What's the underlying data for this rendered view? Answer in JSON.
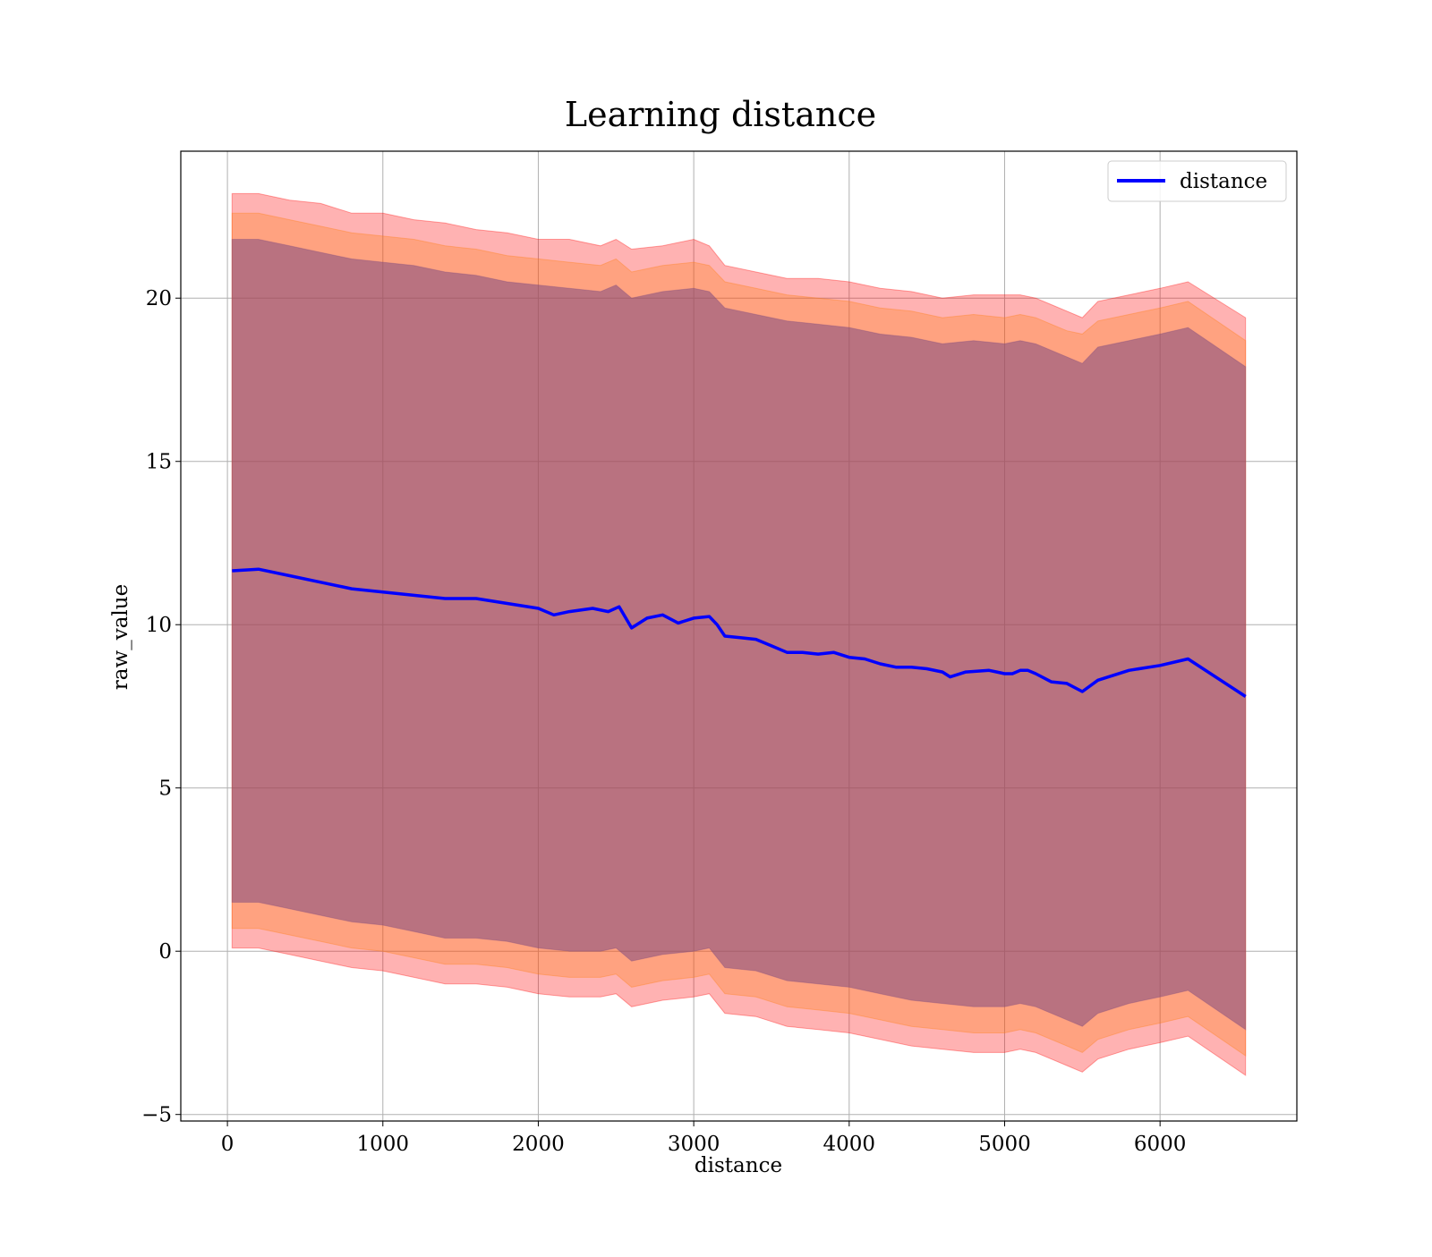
{
  "chart_data": {
    "type": "line",
    "title": "Learning distance",
    "xlabel": "distance",
    "ylabel": "raw_value",
    "xlim": [
      -300,
      6880
    ],
    "ylim": [
      -5.2,
      24.5
    ],
    "xticks": [
      0,
      1000,
      2000,
      3000,
      4000,
      5000,
      6000
    ],
    "xtick_labels": [
      "0",
      "1000",
      "2000",
      "3000",
      "4000",
      "5000",
      "6000"
    ],
    "yticks": [
      -5,
      0,
      5,
      10,
      15,
      20
    ],
    "ytick_labels": [
      "−5",
      "0",
      "5",
      "10",
      "15",
      "20"
    ],
    "grid": true,
    "legend_position": "top-right",
    "series": [
      {
        "name": "distance",
        "color": "#0000ff",
        "x": [
          30,
          200,
          400,
          600,
          800,
          1000,
          1200,
          1400,
          1600,
          1800,
          2000,
          2100,
          2200,
          2350,
          2450,
          2520,
          2600,
          2700,
          2800,
          2900,
          3000,
          3100,
          3150,
          3200,
          3300,
          3400,
          3500,
          3600,
          3700,
          3800,
          3900,
          4000,
          4100,
          4200,
          4300,
          4400,
          4500,
          4600,
          4650,
          4750,
          4900,
          4950,
          5000,
          5050,
          5100,
          5150,
          5200,
          5300,
          5400,
          5500,
          5600,
          5800,
          6000,
          6180,
          6550
        ],
        "y": [
          11.65,
          11.7,
          11.5,
          11.3,
          11.1,
          11.0,
          10.9,
          10.8,
          10.8,
          10.65,
          10.5,
          10.3,
          10.4,
          10.5,
          10.4,
          10.55,
          9.9,
          10.2,
          10.3,
          10.05,
          10.2,
          10.25,
          10.0,
          9.65,
          9.6,
          9.55,
          9.35,
          9.15,
          9.15,
          9.1,
          9.15,
          9.0,
          8.95,
          8.8,
          8.7,
          8.7,
          8.65,
          8.55,
          8.4,
          8.55,
          8.6,
          8.55,
          8.5,
          8.5,
          8.6,
          8.6,
          8.5,
          8.25,
          8.2,
          7.95,
          8.3,
          8.6,
          8.75,
          8.95,
          7.8
        ]
      }
    ],
    "bands": [
      {
        "color": "#ff0000",
        "opacity": 0.3,
        "x": [
          30,
          200,
          400,
          600,
          800,
          1000,
          1200,
          1400,
          1600,
          1800,
          2000,
          2200,
          2400,
          2500,
          2600,
          2800,
          3000,
          3100,
          3200,
          3400,
          3600,
          3800,
          4000,
          4200,
          4400,
          4600,
          4800,
          5000,
          5100,
          5200,
          5300,
          5400,
          5500,
          5600,
          5800,
          6000,
          6180,
          6550
        ],
        "upper": [
          23.2,
          23.2,
          23.0,
          22.9,
          22.6,
          22.6,
          22.4,
          22.3,
          22.1,
          22.0,
          21.8,
          21.8,
          21.6,
          21.8,
          21.5,
          21.6,
          21.8,
          21.6,
          21.0,
          20.8,
          20.6,
          20.6,
          20.5,
          20.3,
          20.2,
          20.0,
          20.1,
          20.1,
          20.1,
          20.0,
          19.8,
          19.6,
          19.4,
          19.9,
          20.1,
          20.3,
          20.5,
          19.4
        ],
        "lower": [
          0.1,
          0.1,
          -0.1,
          -0.3,
          -0.5,
          -0.6,
          -0.8,
          -1.0,
          -1.0,
          -1.1,
          -1.3,
          -1.4,
          -1.4,
          -1.3,
          -1.7,
          -1.5,
          -1.4,
          -1.3,
          -1.9,
          -2.0,
          -2.3,
          -2.4,
          -2.5,
          -2.7,
          -2.9,
          -3.0,
          -3.1,
          -3.1,
          -3.0,
          -3.1,
          -3.3,
          -3.5,
          -3.7,
          -3.3,
          -3.0,
          -2.8,
          -2.6,
          -3.8
        ]
      },
      {
        "color": "#ff7f0e",
        "opacity": 0.3,
        "x": [
          30,
          200,
          400,
          600,
          800,
          1000,
          1200,
          1400,
          1600,
          1800,
          2000,
          2200,
          2400,
          2500,
          2600,
          2800,
          3000,
          3100,
          3200,
          3400,
          3600,
          3800,
          4000,
          4200,
          4400,
          4600,
          4800,
          5000,
          5100,
          5200,
          5300,
          5400,
          5500,
          5600,
          5800,
          6000,
          6180,
          6550
        ],
        "upper": [
          22.6,
          22.6,
          22.4,
          22.2,
          22.0,
          21.9,
          21.8,
          21.6,
          21.5,
          21.3,
          21.2,
          21.1,
          21.0,
          21.2,
          20.8,
          21.0,
          21.1,
          21.0,
          20.5,
          20.3,
          20.1,
          20.0,
          19.9,
          19.7,
          19.6,
          19.4,
          19.5,
          19.4,
          19.5,
          19.4,
          19.2,
          19.0,
          18.9,
          19.3,
          19.5,
          19.7,
          19.9,
          18.7
        ],
        "lower": [
          0.7,
          0.7,
          0.5,
          0.3,
          0.1,
          0.0,
          -0.2,
          -0.4,
          -0.4,
          -0.5,
          -0.7,
          -0.8,
          -0.8,
          -0.7,
          -1.1,
          -0.9,
          -0.8,
          -0.7,
          -1.3,
          -1.4,
          -1.7,
          -1.8,
          -1.9,
          -2.1,
          -2.3,
          -2.4,
          -2.5,
          -2.5,
          -2.4,
          -2.5,
          -2.7,
          -2.9,
          -3.1,
          -2.7,
          -2.4,
          -2.2,
          -2.0,
          -3.2
        ]
      },
      {
        "color": "#7f4a7f",
        "opacity": 0.55,
        "x": [
          30,
          200,
          400,
          600,
          800,
          1000,
          1200,
          1400,
          1600,
          1800,
          2000,
          2200,
          2400,
          2500,
          2600,
          2800,
          3000,
          3100,
          3200,
          3400,
          3600,
          3800,
          4000,
          4200,
          4400,
          4600,
          4800,
          5000,
          5100,
          5200,
          5300,
          5400,
          5500,
          5600,
          5800,
          6000,
          6180,
          6550
        ],
        "upper": [
          21.8,
          21.8,
          21.6,
          21.4,
          21.2,
          21.1,
          21.0,
          20.8,
          20.7,
          20.5,
          20.4,
          20.3,
          20.2,
          20.4,
          20.0,
          20.2,
          20.3,
          20.2,
          19.7,
          19.5,
          19.3,
          19.2,
          19.1,
          18.9,
          18.8,
          18.6,
          18.7,
          18.6,
          18.7,
          18.6,
          18.4,
          18.2,
          18.0,
          18.5,
          18.7,
          18.9,
          19.1,
          17.9
        ],
        "lower": [
          1.5,
          1.5,
          1.3,
          1.1,
          0.9,
          0.8,
          0.6,
          0.4,
          0.4,
          0.3,
          0.1,
          0.0,
          0.0,
          0.1,
          -0.3,
          -0.1,
          0.0,
          0.1,
          -0.5,
          -0.6,
          -0.9,
          -1.0,
          -1.1,
          -1.3,
          -1.5,
          -1.6,
          -1.7,
          -1.7,
          -1.6,
          -1.7,
          -1.9,
          -2.1,
          -2.3,
          -1.9,
          -1.6,
          -1.4,
          -1.2,
          -2.4
        ]
      }
    ]
  }
}
